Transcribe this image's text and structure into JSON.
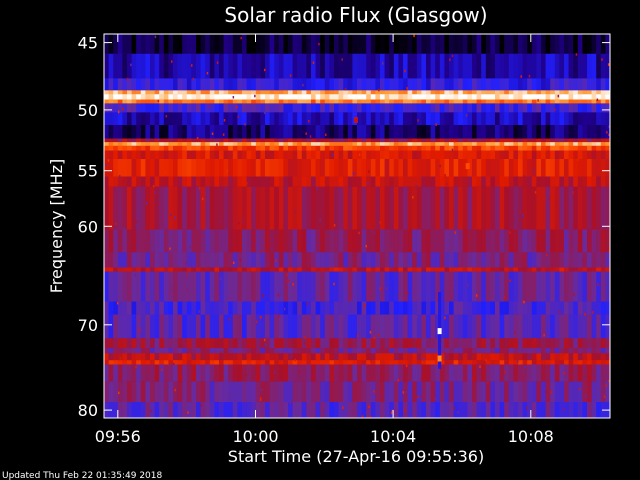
{
  "chart_data": {
    "type": "heatmap",
    "title": "Solar radio Flux (Glasgow)",
    "xlabel": "Start Time (27-Apr-16 09:55:36)",
    "ylabel": "Frequency [MHz]",
    "x_ticks": [
      "09:56",
      "10:00",
      "10:04",
      "10:08"
    ],
    "y_ticks": [
      "45",
      "50",
      "55",
      "60",
      "70",
      "80"
    ],
    "y_tick_values": [
      45,
      50,
      55,
      60,
      70,
      80
    ],
    "ylim": [
      44.4,
      81.0
    ],
    "xlim": [
      "09:55:36",
      "10:10:18"
    ],
    "y_scale": "log",
    "colormap": [
      "#000000",
      "#20008a",
      "#2020ff",
      "#6a2a9a",
      "#a8102a",
      "#e01a00",
      "#ff4a00",
      "#ff9a30",
      "#ffffff"
    ],
    "bands": [
      {
        "from": 44.4,
        "to": 45.8,
        "level": 0.05
      },
      {
        "from": 45.8,
        "to": 47.6,
        "level": 0.16
      },
      {
        "from": 47.6,
        "to": 48.5,
        "level": 0.26
      },
      {
        "from": 48.5,
        "to": 48.8,
        "level": 0.9
      },
      {
        "from": 48.8,
        "to": 49.2,
        "level": 1.0
      },
      {
        "from": 49.2,
        "to": 49.5,
        "level": 0.82
      },
      {
        "from": 49.5,
        "to": 50.2,
        "level": 0.3
      },
      {
        "from": 50.2,
        "to": 51.2,
        "level": 0.18
      },
      {
        "from": 51.2,
        "to": 52.3,
        "level": 0.1
      },
      {
        "from": 52.3,
        "to": 52.6,
        "level": 0.5
      },
      {
        "from": 52.6,
        "to": 52.9,
        "level": 0.88
      },
      {
        "from": 52.9,
        "to": 53.3,
        "level": 0.72
      },
      {
        "from": 53.3,
        "to": 54.0,
        "level": 0.6
      },
      {
        "from": 54.0,
        "to": 55.5,
        "level": 0.63
      },
      {
        "from": 55.5,
        "to": 56.4,
        "level": 0.55
      },
      {
        "from": 56.4,
        "to": 60.3,
        "level": 0.5
      },
      {
        "from": 60.3,
        "to": 62.5,
        "level": 0.44
      },
      {
        "from": 62.5,
        "to": 64.0,
        "level": 0.4
      },
      {
        "from": 64.0,
        "to": 64.4,
        "level": 0.56
      },
      {
        "from": 64.4,
        "to": 67.5,
        "level": 0.36
      },
      {
        "from": 67.5,
        "to": 68.9,
        "level": 0.3
      },
      {
        "from": 68.9,
        "to": 71.5,
        "level": 0.34
      },
      {
        "from": 71.5,
        "to": 72.6,
        "level": 0.46
      },
      {
        "from": 72.6,
        "to": 73.2,
        "level": 0.4
      },
      {
        "from": 73.2,
        "to": 74.0,
        "level": 0.54
      },
      {
        "from": 74.0,
        "to": 74.5,
        "level": 0.62
      },
      {
        "from": 74.5,
        "to": 76.5,
        "level": 0.44
      },
      {
        "from": 76.5,
        "to": 79.0,
        "level": 0.4
      },
      {
        "from": 79.0,
        "to": 81.0,
        "level": 0.34
      }
    ],
    "spots": [
      {
        "time": "10:05:21",
        "freq": 70.7,
        "level": 1.0
      },
      {
        "time": "10:05:21",
        "freq": 73.8,
        "level": 0.85
      },
      {
        "time": "10:02:55",
        "freq": 50.8,
        "level": 0.55
      },
      {
        "time": "10:06:10",
        "freq": 54.6,
        "level": 0.75
      }
    ]
  },
  "footer_text": "Updated Thu Feb 22 01:35:49 2018"
}
